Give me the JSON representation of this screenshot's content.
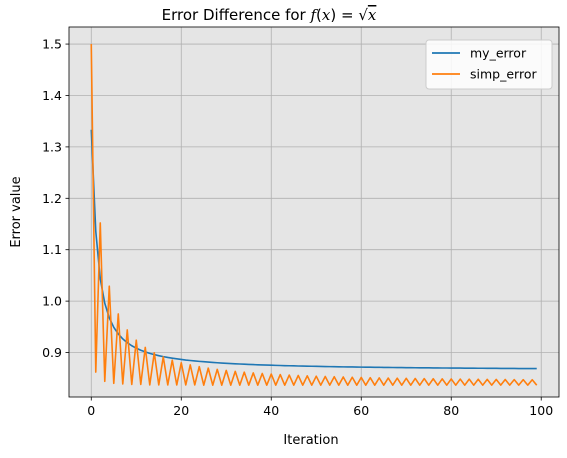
{
  "chart_data": {
    "type": "line",
    "title": "Error Difference for f(x) = √x",
    "title_prefix": "Error Difference for ",
    "title_math": {
      "f": "f",
      "open": "(",
      "x": "x",
      "close": ")",
      "eq": " = ",
      "sqrt": "√",
      "rad": "x"
    },
    "xlabel": "Iteration",
    "ylabel": "Error value",
    "xlim": [
      -4.95,
      103.95
    ],
    "ylim": [
      0.8135,
      1.5332
    ],
    "xticks": [
      0,
      20,
      40,
      60,
      80,
      100
    ],
    "xtick_labels": [
      "0",
      "20",
      "40",
      "60",
      "80",
      "100"
    ],
    "yticks": [
      0.9,
      1.0,
      1.1,
      1.2,
      1.3,
      1.4,
      1.5
    ],
    "ytick_labels": [
      "0.9",
      "1.0",
      "1.1",
      "1.2",
      "1.3",
      "1.4",
      "1.5"
    ],
    "grid": true,
    "legend_position": "top-right",
    "background_color": "#e5e5e5",
    "series": [
      {
        "name": "my_error",
        "color": "#1f77b4",
        "x": [
          0,
          1,
          2,
          3,
          4,
          5,
          6,
          7,
          8,
          9,
          10,
          11,
          12,
          13,
          14,
          15,
          16,
          17,
          18,
          19,
          20,
          21,
          22,
          23,
          24,
          25,
          26,
          27,
          28,
          29,
          30,
          31,
          32,
          33,
          34,
          35,
          36,
          37,
          38,
          39,
          40,
          41,
          42,
          43,
          44,
          45,
          46,
          47,
          48,
          49,
          50,
          51,
          52,
          53,
          54,
          55,
          56,
          57,
          58,
          59,
          60,
          61,
          62,
          63,
          64,
          65,
          66,
          67,
          68,
          69,
          70,
          71,
          72,
          73,
          74,
          75,
          76,
          77,
          78,
          79,
          80,
          81,
          82,
          83,
          84,
          85,
          86,
          87,
          88,
          89,
          90,
          91,
          92,
          93,
          94,
          95,
          96,
          97,
          98,
          99
        ],
        "y": [
          1.3333,
          1.1357,
          1.0433,
          0.9958,
          0.9676,
          0.9491,
          0.9361,
          0.9265,
          0.9191,
          0.9132,
          0.9085,
          0.9045,
          0.9012,
          0.8984,
          0.896,
          0.8939,
          0.892,
          0.8904,
          0.889,
          0.8877,
          0.8865,
          0.8854,
          0.8845,
          0.8836,
          0.8828,
          0.8821,
          0.8814,
          0.8807,
          0.8801,
          0.8796,
          0.8791,
          0.8786,
          0.8781,
          0.8777,
          0.8773,
          0.8769,
          0.8765,
          0.8762,
          0.8759,
          0.8756,
          0.8753,
          0.875,
          0.8748,
          0.8745,
          0.8743,
          0.8741,
          0.8738,
          0.8736,
          0.8734,
          0.8733,
          0.8731,
          0.8729,
          0.8727,
          0.8726,
          0.8724,
          0.8723,
          0.8721,
          0.872,
          0.8719,
          0.8717,
          0.8716,
          0.8715,
          0.8714,
          0.8713,
          0.8712,
          0.8711,
          0.871,
          0.8709,
          0.8708,
          0.8707,
          0.8706,
          0.8705,
          0.8704,
          0.8703,
          0.8702,
          0.8702,
          0.8701,
          0.87,
          0.8699,
          0.8699,
          0.8698,
          0.8697,
          0.8697,
          0.8696,
          0.8695,
          0.8695,
          0.8694,
          0.8694,
          0.8693,
          0.8693,
          0.8692,
          0.8691,
          0.8691,
          0.869,
          0.869,
          0.8689,
          0.8689,
          0.8689,
          0.8688,
          0.8688
        ]
      },
      {
        "name": "simp_error",
        "color": "#ff7f0e",
        "x": [
          0,
          1,
          2,
          3,
          4,
          5,
          6,
          7,
          8,
          9,
          10,
          11,
          12,
          13,
          14,
          15,
          16,
          17,
          18,
          19,
          20,
          21,
          22,
          23,
          24,
          25,
          26,
          27,
          28,
          29,
          30,
          31,
          32,
          33,
          34,
          35,
          36,
          37,
          38,
          39,
          40,
          41,
          42,
          43,
          44,
          45,
          46,
          47,
          48,
          49,
          50,
          51,
          52,
          53,
          54,
          55,
          56,
          57,
          58,
          59,
          60,
          61,
          62,
          63,
          64,
          65,
          66,
          67,
          68,
          69,
          70,
          71,
          72,
          73,
          74,
          75,
          76,
          77,
          78,
          79,
          80,
          81,
          82,
          83,
          84,
          85,
          86,
          87,
          88,
          89,
          90,
          91,
          92,
          93,
          94,
          95,
          96,
          97,
          98,
          99
        ],
        "y": [
          1.5,
          0.862,
          1.152,
          0.844,
          1.029,
          0.84,
          0.975,
          0.839,
          0.944,
          0.838,
          0.924,
          0.838,
          0.91,
          0.837,
          0.8995,
          0.837,
          0.8915,
          0.837,
          0.8852,
          0.837,
          0.8801,
          0.837,
          0.876,
          0.837,
          0.8726,
          0.8365,
          0.8697,
          0.8365,
          0.8673,
          0.8365,
          0.8652,
          0.8365,
          0.8634,
          0.8365,
          0.8618,
          0.8365,
          0.8604,
          0.8365,
          0.8592,
          0.8365,
          0.8581,
          0.8365,
          0.8571,
          0.8365,
          0.8562,
          0.8365,
          0.8554,
          0.8365,
          0.8547,
          0.8365,
          0.854,
          0.8365,
          0.8534,
          0.8365,
          0.8529,
          0.8365,
          0.8524,
          0.8365,
          0.8519,
          0.8365,
          0.8515,
          0.8365,
          0.8511,
          0.8365,
          0.8507,
          0.8365,
          0.8504,
          0.8365,
          0.8501,
          0.8365,
          0.8498,
          0.8365,
          0.8495,
          0.8365,
          0.8493,
          0.8365,
          0.849,
          0.8365,
          0.8488,
          0.8365,
          0.8486,
          0.8365,
          0.8484,
          0.8365,
          0.8482,
          0.8365,
          0.848,
          0.8365,
          0.8478,
          0.8365,
          0.8477,
          0.8365,
          0.8475,
          0.8365,
          0.8474,
          0.8365,
          0.8472,
          0.8365,
          0.8471,
          0.8365
        ]
      }
    ]
  }
}
